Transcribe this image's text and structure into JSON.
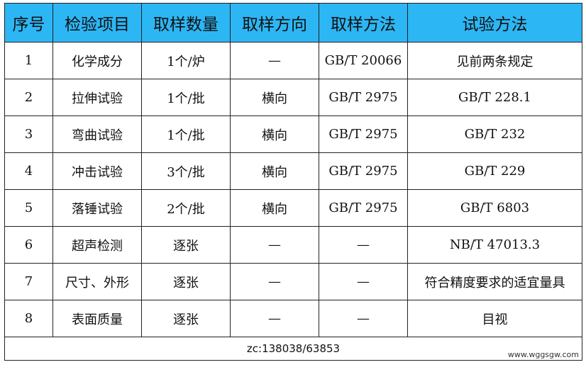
{
  "header": {
    "columns": [
      "序号",
      "检验项目",
      "取样数量",
      "取样方向",
      "取样方法",
      "试验方法"
    ]
  },
  "table": {
    "rows": [
      [
        "1",
        "化学成分",
        "1个/炉",
        "—",
        "GB/T 20066",
        "见前两条规定"
      ],
      [
        "2",
        "拉伸试验",
        "1个/批",
        "横向",
        "GB/T 2975",
        "GB/T 228.1"
      ],
      [
        "3",
        "弯曲试验",
        "1个/批",
        "横向",
        "GB/T 2975",
        "GB/T 232"
      ],
      [
        "4",
        "冲击试验",
        "3个/批",
        "横向",
        "GB/T 2975",
        "GB/T 229"
      ],
      [
        "5",
        "落锤试验",
        "2个/批",
        "横向",
        "GB/T 2975",
        "GB/T 6803"
      ],
      [
        "6",
        "超声检测",
        "逐张",
        "—",
        "—",
        "NB/T 47013.3"
      ],
      [
        "7",
        "尺寸、外形",
        "逐张",
        "—",
        "—",
        "符合精度要求的适宜量具"
      ],
      [
        "8",
        "表面质量",
        "逐张",
        "—",
        "—",
        "目视"
      ]
    ]
  },
  "footer": {
    "text": "zc:138038/63853",
    "watermark": "www.wggsgw.com"
  }
}
